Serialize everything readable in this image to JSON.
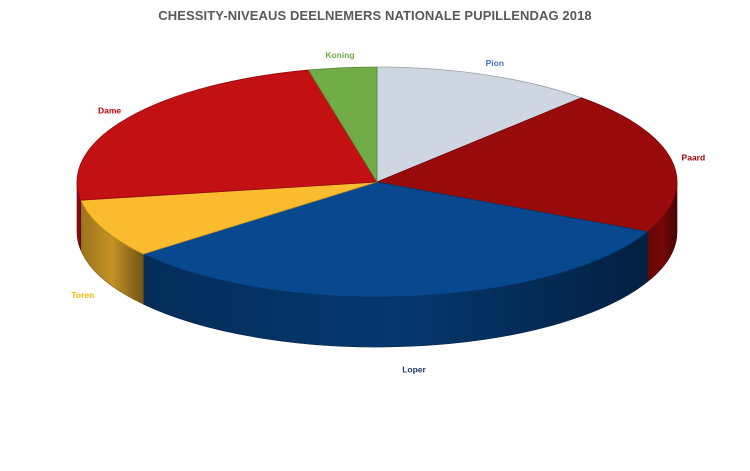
{
  "chart_data": {
    "type": "pie",
    "title": "CHESSITY-NIVEAUS DEELNEMERS NATIONALE PUPILLENDAG 2018",
    "legend": "none",
    "slices": [
      {
        "label": "Pion",
        "value": 13,
        "color": "#CED6E1"
      },
      {
        "label": "Paard",
        "value": 22,
        "color": "#990A0A"
      },
      {
        "label": "Loper",
        "value": 35,
        "color": "#07488F"
      },
      {
        "label": "Toren",
        "value": 9,
        "color": "#FBBB2E"
      },
      {
        "label": "Dame",
        "value": 26,
        "color": "#C21013"
      },
      {
        "label": "Koning",
        "value": 4,
        "color": "#70AD47"
      }
    ],
    "label_colors": {
      "Pion": "#4472C4",
      "Paard": "#9C0000",
      "Loper": "#1F3864",
      "Toren": "#F4B400",
      "Dame": "#C00000",
      "Koning": "#70AD47"
    }
  }
}
